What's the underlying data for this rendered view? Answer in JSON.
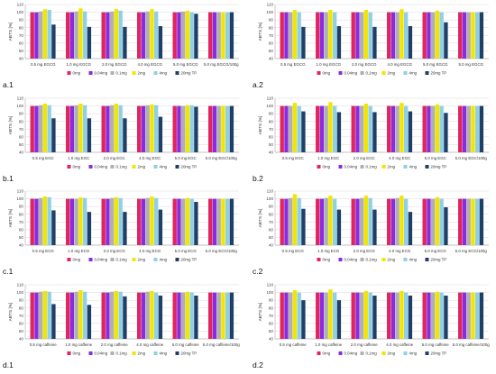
{
  "figure": {
    "legend": [
      "0mg",
      "0.04mg",
      "0.1mg",
      "2mg",
      "4mg",
      "20mg TP"
    ],
    "colors": [
      "#e0245e",
      "#8a2be2",
      "#b0b0b0",
      "#f2e600",
      "#8fd0e8",
      "#1f3f66"
    ]
  },
  "chart_data": [
    {
      "type": "bar",
      "panel_label": "a.1",
      "ylabel": "ABTS [%]",
      "ylim": [
        40,
        110
      ],
      "yticks": [
        40,
        50,
        60,
        70,
        80,
        90,
        100,
        110
      ],
      "grid": true,
      "legend": "bottom",
      "categories": [
        "0.5 mg EGCG",
        "1.0 mg EGCG",
        "2.0 mg EGCG",
        "4.0 mg EGCG",
        "5.0 mg EGCG",
        "5.0 mg EGCG/100g"
      ],
      "series": [
        {
          "name": "0mg",
          "values": [
            100,
            100,
            100,
            100,
            100,
            100
          ]
        },
        {
          "name": "0.04mg",
          "values": [
            100,
            100,
            100,
            100,
            100,
            100
          ]
        },
        {
          "name": "0.1mg",
          "values": [
            101,
            101,
            101,
            101,
            101,
            100
          ]
        },
        {
          "name": "2mg",
          "values": [
            104,
            105,
            104,
            104,
            102,
            100
          ]
        },
        {
          "name": "4mg",
          "values": [
            103,
            101,
            102,
            101,
            100,
            100
          ]
        },
        {
          "name": "20mg TP",
          "values": [
            84,
            81,
            81,
            82,
            98,
            100
          ]
        }
      ]
    },
    {
      "type": "bar",
      "panel_label": "a.2",
      "ylabel": "ABTS [%]",
      "ylim": [
        40,
        110
      ],
      "yticks": [
        40,
        50,
        60,
        70,
        80,
        90,
        100,
        110
      ],
      "grid": true,
      "legend": "bottom",
      "categories": [
        "0.5 mg EGCG",
        "1.0 mg EGCG",
        "2.0 mg EGCG",
        "4.0 mg EGCG",
        "5.0 mg EGCG",
        "5.0 mg EGCG"
      ],
      "series": [
        {
          "name": "0mg",
          "values": [
            100,
            100,
            100,
            100,
            100,
            100
          ]
        },
        {
          "name": "0.04mg",
          "values": [
            100,
            100,
            100,
            100,
            100,
            100
          ]
        },
        {
          "name": "0.1mg",
          "values": [
            100,
            100,
            100,
            100,
            100,
            100
          ]
        },
        {
          "name": "2mg",
          "values": [
            103,
            103,
            103,
            104,
            102,
            100
          ]
        },
        {
          "name": "4mg",
          "values": [
            100,
            100,
            100,
            100,
            100,
            100
          ]
        },
        {
          "name": "20mg TP",
          "values": [
            81,
            82,
            81,
            82,
            87,
            100
          ]
        }
      ]
    },
    {
      "type": "bar",
      "panel_label": "b.1",
      "ylabel": "ABTS [%]",
      "ylim": [
        40,
        110
      ],
      "yticks": [
        40,
        50,
        60,
        70,
        80,
        90,
        100,
        110
      ],
      "grid": true,
      "legend": "bottom",
      "categories": [
        "0.5 mg EGC",
        "1.0 mg EGC",
        "2.0 mg EGC",
        "4.0 mg EGC",
        "5.0 mg EGC",
        "5.0 mg EGC/100g"
      ],
      "series": [
        {
          "name": "0mg",
          "values": [
            100,
            100,
            100,
            100,
            100,
            100
          ]
        },
        {
          "name": "0.04mg",
          "values": [
            100,
            100,
            100,
            100,
            100,
            100
          ]
        },
        {
          "name": "0.1mg",
          "values": [
            101,
            101,
            101,
            101,
            100,
            100
          ]
        },
        {
          "name": "2mg",
          "values": [
            103,
            103,
            103,
            102,
            101,
            100
          ]
        },
        {
          "name": "4mg",
          "values": [
            101,
            101,
            101,
            101,
            101,
            100
          ]
        },
        {
          "name": "20mg TP",
          "values": [
            84,
            84,
            84,
            86,
            99,
            100
          ]
        }
      ]
    },
    {
      "type": "bar",
      "panel_label": "b.2",
      "ylabel": "ABTS [%]",
      "ylim": [
        40,
        110
      ],
      "yticks": [
        40,
        50,
        60,
        70,
        80,
        90,
        100,
        110
      ],
      "grid": true,
      "legend": "bottom",
      "categories": [
        "0.5 mg EGC",
        "1.0 mg EGC",
        "2.0 mg EGC",
        "4.0 mg EGC",
        "5.0 mg EGC",
        "5.0 mg EGC/100g"
      ],
      "series": [
        {
          "name": "0mg",
          "values": [
            100,
            100,
            100,
            100,
            100,
            100
          ]
        },
        {
          "name": "0.04mg",
          "values": [
            100,
            100,
            100,
            100,
            100,
            100
          ]
        },
        {
          "name": "0.1mg",
          "values": [
            100,
            100,
            100,
            100,
            100,
            100
          ]
        },
        {
          "name": "2mg",
          "values": [
            104,
            105,
            103,
            104,
            102,
            100
          ]
        },
        {
          "name": "4mg",
          "values": [
            100,
            100,
            100,
            100,
            100,
            100
          ]
        },
        {
          "name": "20mg TP",
          "values": [
            93,
            92,
            92,
            93,
            91,
            100
          ]
        }
      ]
    },
    {
      "type": "bar",
      "panel_label": "c.1",
      "ylabel": "ABTS [%]",
      "ylim": [
        40,
        110
      ],
      "yticks": [
        40,
        50,
        60,
        70,
        80,
        90,
        100,
        110
      ],
      "grid": true,
      "legend": "bottom",
      "categories": [
        "0.5 mg ECG",
        "1.0 mg ECG",
        "2.0 mg ECG",
        "4.0 mg ECG",
        "5.0 mg ECG",
        "5.0 mg ECG/100g"
      ],
      "series": [
        {
          "name": "0mg",
          "values": [
            100,
            100,
            100,
            100,
            100,
            100
          ]
        },
        {
          "name": "0.04mg",
          "values": [
            100,
            100,
            100,
            100,
            100,
            100
          ]
        },
        {
          "name": "0.1mg",
          "values": [
            101,
            100,
            101,
            101,
            100,
            100
          ]
        },
        {
          "name": "2mg",
          "values": [
            103,
            102,
            102,
            103,
            101,
            100
          ]
        },
        {
          "name": "4mg",
          "values": [
            102,
            101,
            101,
            101,
            100,
            100
          ]
        },
        {
          "name": "20mg TP",
          "values": [
            85,
            83,
            83,
            86,
            96,
            100
          ]
        }
      ]
    },
    {
      "type": "bar",
      "panel_label": "c.2",
      "ylabel": "ABTS [%]",
      "ylim": [
        40,
        110
      ],
      "yticks": [
        40,
        50,
        60,
        70,
        80,
        90,
        100,
        110
      ],
      "grid": true,
      "legend": "bottom",
      "categories": [
        "0.5 mg ECG",
        "1.0 mg ECG",
        "2.0 mg ECG",
        "4.0 mg ECG",
        "5.0 mg ECG",
        "5.0 mg ECG/100g"
      ],
      "series": [
        {
          "name": "0mg",
          "values": [
            100,
            100,
            100,
            100,
            100,
            100
          ]
        },
        {
          "name": "0.04mg",
          "values": [
            100,
            100,
            100,
            100,
            100,
            100
          ]
        },
        {
          "name": "0.1mg",
          "values": [
            101,
            101,
            101,
            101,
            100,
            100
          ]
        },
        {
          "name": "2mg",
          "values": [
            106,
            104,
            104,
            104,
            102,
            100
          ]
        },
        {
          "name": "4mg",
          "values": [
            101,
            100,
            101,
            100,
            100,
            100
          ]
        },
        {
          "name": "20mg TP",
          "values": [
            87,
            86,
            86,
            83,
            89,
            100
          ]
        }
      ]
    },
    {
      "type": "bar",
      "panel_label": "d.1",
      "ylabel": "ABTS [%]",
      "ylim": [
        40,
        110
      ],
      "yticks": [
        40,
        50,
        60,
        70,
        80,
        90,
        100,
        110
      ],
      "grid": true,
      "legend": "bottom",
      "categories": [
        "0.5 mg caffeine",
        "1.0 mg caffeine",
        "2.0 mg caffeine",
        "4.0 mg caffeine",
        "5.0 mg caffeine",
        "5.0 mg caffeine/100g"
      ],
      "series": [
        {
          "name": "0mg",
          "values": [
            100,
            100,
            100,
            100,
            100,
            100
          ]
        },
        {
          "name": "0.04mg",
          "values": [
            100,
            100,
            100,
            100,
            100,
            100
          ]
        },
        {
          "name": "0.1mg",
          "values": [
            101,
            101,
            101,
            101,
            100,
            100
          ]
        },
        {
          "name": "2mg",
          "values": [
            102,
            103,
            102,
            102,
            101,
            100
          ]
        },
        {
          "name": "4mg",
          "values": [
            101,
            101,
            101,
            100,
            100,
            100
          ]
        },
        {
          "name": "20mg TP",
          "values": [
            85,
            84,
            95,
            96,
            96,
            100
          ]
        }
      ]
    },
    {
      "type": "bar",
      "panel_label": "d.2",
      "ylabel": "ABTS [%]",
      "ylim": [
        40,
        110
      ],
      "yticks": [
        40,
        50,
        60,
        70,
        80,
        90,
        100,
        110
      ],
      "grid": true,
      "legend": "bottom",
      "categories": [
        "0.5 mg caffeine",
        "1.0 mg caffeine",
        "2.0 mg caffeine",
        "4.0 mg caffeine",
        "5.0 mg caffeine",
        "5.0 mg caffeine/100g"
      ],
      "series": [
        {
          "name": "0mg",
          "values": [
            100,
            100,
            100,
            100,
            100,
            100
          ]
        },
        {
          "name": "0.04mg",
          "values": [
            100,
            100,
            100,
            100,
            100,
            100
          ]
        },
        {
          "name": "0.1mg",
          "values": [
            100,
            100,
            100,
            100,
            100,
            100
          ]
        },
        {
          "name": "2mg",
          "values": [
            103,
            104,
            102,
            102,
            101,
            100
          ]
        },
        {
          "name": "4mg",
          "values": [
            100,
            100,
            100,
            100,
            100,
            100
          ]
        },
        {
          "name": "20mg TP",
          "values": [
            90,
            90,
            96,
            96,
            96,
            100
          ]
        }
      ]
    }
  ]
}
